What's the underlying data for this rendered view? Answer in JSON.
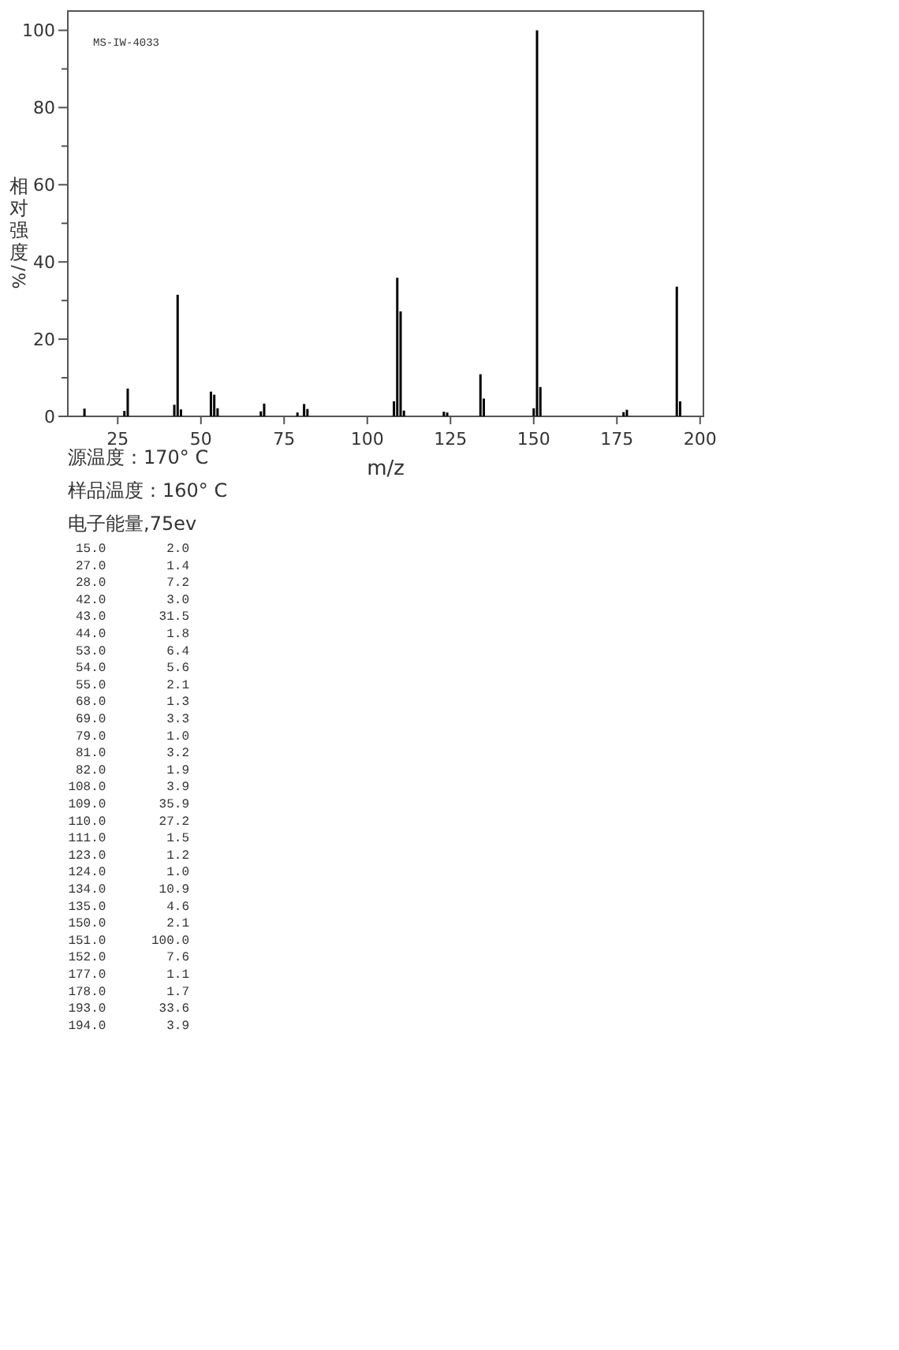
{
  "chart_data": {
    "type": "bar",
    "xlabel": "m/z",
    "ylabel": "相对强度/%",
    "annotations": [
      "MS-IW-4033",
      "源温度：170° C",
      "样品温度：160° C",
      "电子能量,75ev",
      "15.0        2.0",
      "27.0        1.4",
      "28.0        7.2",
      "42.0        3.0",
      "43.0       31.5",
      "44.0        1.8",
      "53.0        6.4",
      "54.0        5.6",
      "55.0        2.1",
      "68.0        1.3",
      "69.0        3.3",
      "79.0        1.0",
      "81.0        3.2",
      "82.0        1.9",
      "108.0        3.9",
      "109.0       35.9",
      "110.0       27.2",
      "111.0        1.5",
      "123.0        1.2",
      "124.0        1.0",
      "134.0       10.9",
      "135.0        4.6",
      "150.0        2.1",
      "151.0      100.0",
      "152.0        7.6",
      "177.0        1.1",
      "178.0        1.7",
      "193.0       33.6",
      "194.0        3.9"
    ],
    "x": [
      15,
      27,
      28,
      42,
      43,
      44,
      53,
      54,
      55,
      68,
      69,
      79,
      81,
      82,
      108,
      109,
      110,
      111,
      123,
      124,
      134,
      135,
      150,
      151,
      152,
      177,
      178,
      193,
      194
    ],
    "values": [
      2.0,
      1.4,
      7.2,
      3.0,
      31.5,
      1.8,
      6.4,
      5.6,
      2.1,
      1.3,
      3.3,
      1.0,
      3.2,
      1.9,
      3.9,
      35.9,
      27.2,
      1.5,
      1.2,
      1.0,
      10.9,
      4.6,
      2.1,
      100.0,
      7.6,
      1.1,
      1.7,
      33.6,
      3.9
    ],
    "color": "#000000",
    "xlim": [
      10,
      201
    ],
    "xticks": [
      25,
      50,
      75,
      100,
      125,
      150,
      175,
      200
    ],
    "ylim": [
      0,
      105
    ],
    "yticks": [
      0,
      {
        "value": 10,
        "label": null
      },
      20,
      {
        "value": 30,
        "label": null
      },
      40,
      {
        "value": 50,
        "label": null
      },
      60,
      {
        "value": 70,
        "label": null
      },
      80,
      {
        "value": 90,
        "label": null
      },
      100
    ]
  }
}
